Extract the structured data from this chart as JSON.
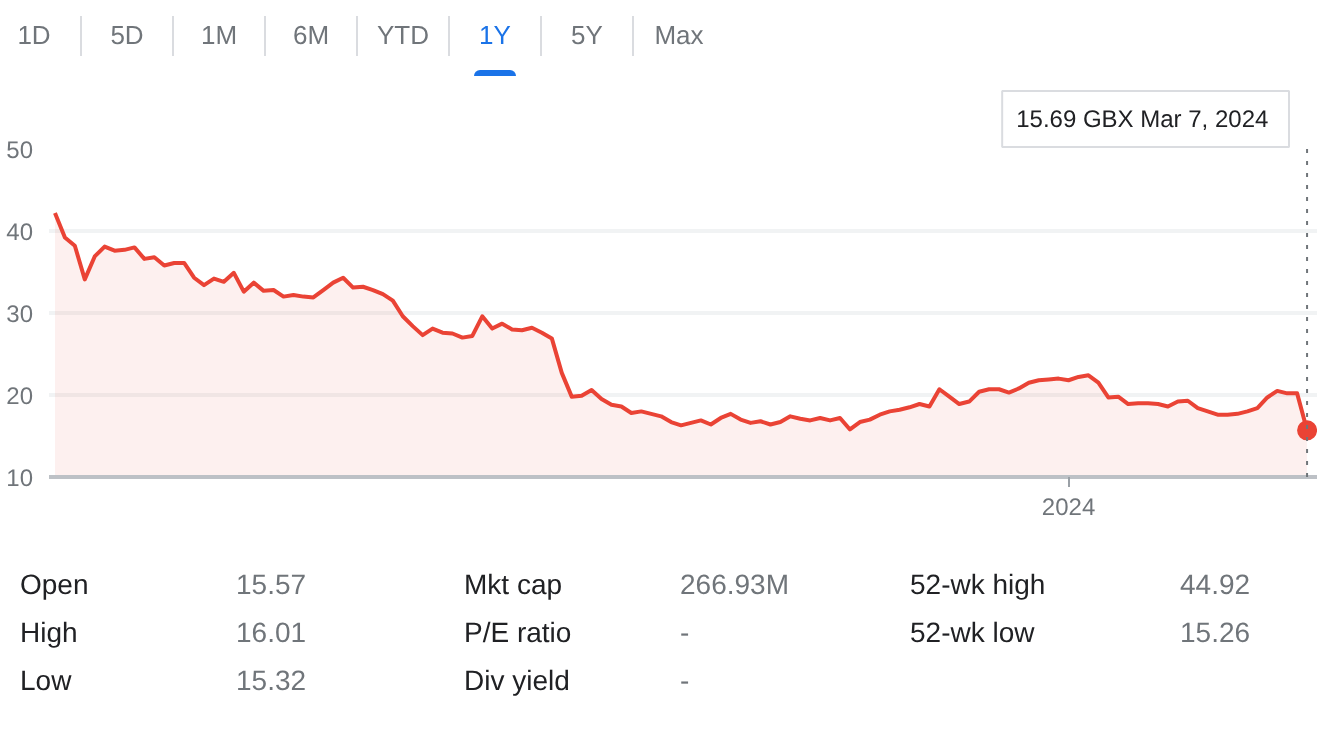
{
  "chart_data": {
    "type": "area",
    "categories": [
      null,
      null,
      null,
      null,
      null,
      null,
      null,
      null,
      null,
      null,
      null,
      null,
      null,
      null,
      null,
      null,
      null,
      null,
      null,
      null,
      null,
      null,
      null,
      null,
      null,
      null,
      null,
      null,
      null,
      null,
      null,
      null,
      null,
      null,
      null,
      null,
      null,
      null,
      null,
      null,
      null,
      null,
      null,
      null,
      null,
      null,
      null,
      null,
      null,
      null,
      null,
      null,
      null,
      null,
      null,
      null,
      null,
      null,
      null,
      null,
      null,
      null,
      null,
      null,
      null,
      null,
      null,
      null,
      null,
      null,
      null,
      null,
      null,
      null,
      null,
      null,
      null,
      null,
      null,
      null,
      null,
      null,
      null,
      null,
      null,
      null,
      null,
      null,
      null,
      null,
      null,
      null,
      null,
      null,
      null,
      null,
      null,
      null,
      null,
      null,
      null,
      null,
      "2024",
      null,
      null,
      null,
      null,
      null,
      null,
      null,
      null,
      null,
      null,
      null,
      null,
      null,
      null,
      null,
      null,
      null,
      null,
      null,
      null,
      null,
      null,
      null,
      null
    ],
    "series": [
      {
        "color": "#ea4335",
        "values": [
          42.2,
          39.2,
          38.2,
          34.1,
          36.9,
          38.1,
          37.6,
          37.7,
          38.0,
          36.6,
          36.8,
          35.8,
          36.1,
          36.1,
          34.3,
          33.4,
          34.2,
          33.8,
          34.9,
          32.6,
          33.7,
          32.7,
          32.8,
          32.0,
          32.2,
          32.0,
          31.9,
          32.8,
          33.7,
          34.3,
          33.1,
          33.2,
          32.8,
          32.3,
          31.5,
          29.6,
          28.4,
          27.3,
          28.1,
          27.6,
          27.5,
          27.0,
          27.2,
          29.6,
          28.1,
          28.7,
          28.0,
          27.9,
          28.2,
          27.6,
          26.9,
          22.7,
          19.8,
          19.9,
          20.6,
          19.5,
          18.8,
          18.6,
          17.8,
          18.0,
          17.7,
          17.4,
          16.7,
          16.3,
          16.6,
          16.9,
          16.4,
          17.2,
          17.7,
          17.0,
          16.6,
          16.8,
          16.4,
          16.7,
          17.4,
          17.1,
          16.9,
          17.2,
          16.9,
          17.2,
          15.8,
          16.7,
          17.0,
          17.6,
          18.0,
          18.2,
          18.5,
          18.9,
          18.6,
          20.7,
          19.8,
          18.9,
          19.2,
          20.4,
          20.7,
          20.7,
          20.3,
          20.8,
          21.5,
          21.8,
          21.9,
          22.0,
          21.8,
          22.2,
          22.4,
          21.5,
          19.7,
          19.8,
          18.9,
          19.0,
          19.0,
          18.9,
          18.6,
          19.2,
          19.3,
          18.4,
          18.0,
          17.6,
          17.6,
          17.7,
          18.0,
          18.4,
          19.7,
          20.5,
          20.2,
          20.2,
          15.69
        ]
      },
      {
        "type": "scatter",
        "color": "#ea4335",
        "values": [
          null,
          null,
          null,
          null,
          null,
          null,
          null,
          null,
          null,
          null,
          null,
          null,
          null,
          null,
          null,
          null,
          null,
          null,
          null,
          null,
          null,
          null,
          null,
          null,
          null,
          null,
          null,
          null,
          null,
          null,
          null,
          null,
          null,
          null,
          null,
          null,
          null,
          null,
          null,
          null,
          null,
          null,
          null,
          null,
          null,
          null,
          null,
          null,
          null,
          null,
          null,
          null,
          null,
          null,
          null,
          null,
          null,
          null,
          null,
          null,
          null,
          null,
          null,
          null,
          null,
          null,
          null,
          null,
          null,
          null,
          null,
          null,
          null,
          null,
          null,
          null,
          null,
          null,
          null,
          null,
          null,
          null,
          null,
          null,
          null,
          null,
          null,
          null,
          null,
          null,
          null,
          null,
          null,
          null,
          null,
          null,
          null,
          null,
          null,
          null,
          null,
          null,
          null,
          null,
          null,
          null,
          null,
          null,
          null,
          null,
          null,
          null,
          null,
          null,
          null,
          null,
          null,
          null,
          null,
          null,
          null,
          null,
          null,
          null,
          null,
          null,
          15.69
        ]
      }
    ],
    "ylim": [
      10,
      50
    ],
    "yticks": [
      10,
      20,
      30,
      40,
      50
    ],
    "grid": "y",
    "annotations": [
      "1D",
      "5D",
      "1M",
      "6M",
      "YTD",
      "1Y",
      "5Y",
      "Max",
      "Open",
      "15.57",
      "Mkt cap",
      "266.93M",
      "52-wk high",
      "44.92",
      "High",
      "16.01",
      "P/E ratio",
      "-",
      "52-wk low",
      "15.26",
      "Low",
      "15.32",
      "Div yield",
      "-",
      "15.69 GBX  Mar 7, 2024"
    ]
  }
}
